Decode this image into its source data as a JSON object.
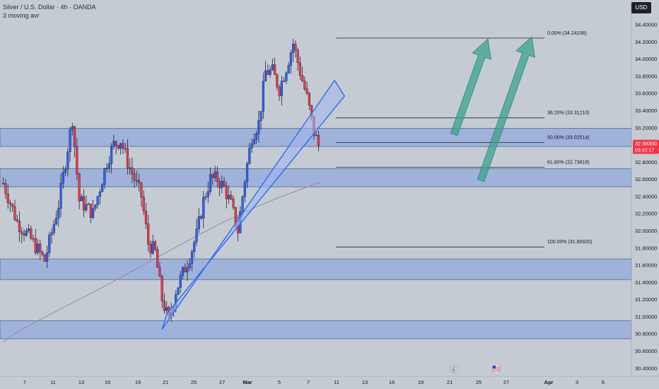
{
  "header": {
    "title": "Silver / U.S. Dollar · 4h · OANDA",
    "indicator": "3 moving avr"
  },
  "currency_button": "USD",
  "price_tag": {
    "price": "32.98300",
    "countdown": "03:42:17"
  },
  "colors": {
    "background": "#c5cbd3",
    "up_candle": "#2962ff",
    "down_candle": "#f23645",
    "zone_fill": "#7f9fe0",
    "channel": "#2d6cf2",
    "arrow": "#3aa38f",
    "moving_average": "#8d8fa3",
    "price_tag": "#f23645"
  },
  "chart_data": {
    "type": "candlestick",
    "y_axis": {
      "range": [
        30.32,
        34.52
      ],
      "ticks": [
        "34.40000",
        "34.20000",
        "34.00000",
        "33.80000",
        "33.60000",
        "33.40000",
        "33.20000",
        "33.00000",
        "32.80000",
        "32.60000",
        "32.40000",
        "32.20000",
        "32.00000",
        "31.80000",
        "31.60000",
        "31.40000",
        "31.20000",
        "31.00000",
        "30.80000",
        "30.60000",
        "30.40000"
      ]
    },
    "x_axis": {
      "ticks": [
        "7",
        "11",
        "13",
        "16",
        "19",
        "21",
        "25",
        "27",
        "Mar",
        "5",
        "7",
        "11",
        "13",
        "16",
        "19",
        "21",
        "25",
        "27",
        "Apr",
        "3",
        "6"
      ]
    },
    "fibonacci": [
      {
        "label": "0.00% (34.24108)",
        "price": 34.24108
      },
      {
        "label": "38.20% (33.31210)",
        "price": 33.3121
      },
      {
        "label": "50.00% (33.02514)",
        "price": 33.02514
      },
      {
        "label": "61.80% (32.73818)",
        "price": 32.73818
      },
      {
        "label": "100.00% (31.80920)",
        "price": 31.8092
      }
    ],
    "zones": [
      {
        "low": 32.98,
        "high": 33.19
      },
      {
        "low": 32.51,
        "high": 32.72
      },
      {
        "low": 31.43,
        "high": 31.67
      },
      {
        "low": 30.74,
        "high": 30.95
      }
    ],
    "channel": {
      "start": [
        "27 Feb",
        30.85
      ],
      "end": [
        "24 Mar",
        33.75
      ]
    },
    "waypoints": [
      [
        "4 Feb",
        32.55
      ],
      [
        "6 Feb",
        32.1
      ],
      [
        "8 Feb",
        31.9
      ],
      [
        "10 Feb",
        31.65
      ],
      [
        "12 Feb",
        32.3
      ],
      [
        "14 Feb",
        33.3
      ],
      [
        "15 Feb",
        32.35
      ],
      [
        "17 Feb",
        32.2
      ],
      [
        "19 Feb",
        32.8
      ],
      [
        "20 Feb",
        33.0
      ],
      [
        "21 Feb",
        33.05
      ],
      [
        "22 Feb",
        32.8
      ],
      [
        "24 Feb",
        32.4
      ],
      [
        "25 Feb",
        31.85
      ],
      [
        "26 Feb",
        31.75
      ],
      [
        "27 Feb",
        31.2
      ],
      [
        "28 Feb",
        30.95
      ],
      [
        "1 Mar",
        31.3
      ],
      [
        "3 Mar",
        31.7
      ],
      [
        "4 Mar",
        31.95
      ],
      [
        "5 Mar",
        32.35
      ],
      [
        "6 Mar",
        32.6
      ],
      [
        "7 Mar",
        32.6
      ],
      [
        "8 Mar",
        32.5
      ],
      [
        "9 Mar",
        32.3
      ],
      [
        "10 Mar",
        32.0
      ],
      [
        "11 Mar",
        32.6
      ],
      [
        "12 Mar",
        33.1
      ],
      [
        "13 Mar",
        33.25
      ],
      [
        "14 Mar",
        33.85
      ],
      [
        "15 Mar",
        33.85
      ],
      [
        "16 Mar",
        33.65
      ],
      [
        "17 Mar",
        33.9
      ],
      [
        "18 Mar",
        34.18
      ],
      [
        "19 Mar",
        33.85
      ],
      [
        "20 Mar",
        33.55
      ],
      [
        "21 Mar",
        33.15
      ],
      [
        "21.7 Mar",
        32.98
      ]
    ],
    "current_price": 32.983
  }
}
